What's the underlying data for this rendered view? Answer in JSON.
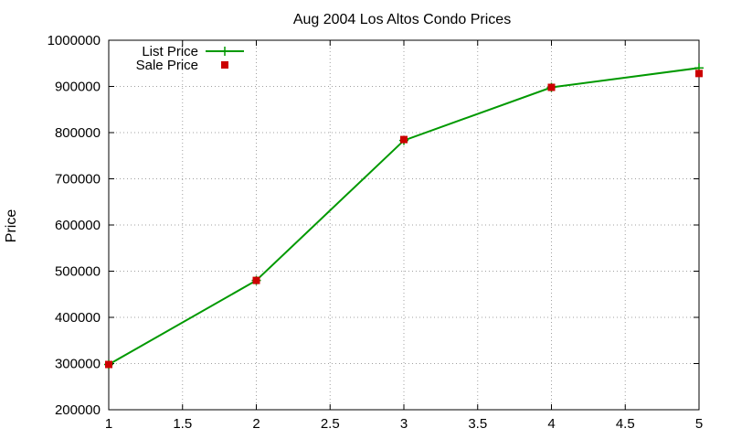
{
  "chart_data": {
    "type": "line",
    "title": "Aug 2004 Los Altos Condo Prices",
    "xlabel": "",
    "ylabel": "Price",
    "xlim": [
      1,
      5
    ],
    "ylim": [
      200000,
      1000000
    ],
    "x_ticks": [
      1,
      1.5,
      2,
      2.5,
      3,
      3.5,
      4,
      4.5,
      5
    ],
    "y_ticks": [
      200000,
      300000,
      400000,
      500000,
      600000,
      700000,
      800000,
      900000,
      1000000
    ],
    "grid": true,
    "legend_position": "top-left",
    "series": [
      {
        "name": "List Price",
        "style": "linespoints",
        "color": "#009900",
        "marker": "plus",
        "x": [
          1,
          2,
          3,
          4,
          5
        ],
        "values": [
          298000,
          480000,
          783000,
          898000,
          940000
        ]
      },
      {
        "name": "Sale Price",
        "style": "points",
        "color": "#cc0000",
        "marker": "square",
        "x": [
          1,
          2,
          3,
          4,
          5
        ],
        "values": [
          298000,
          480000,
          785000,
          898000,
          928000
        ]
      }
    ]
  }
}
